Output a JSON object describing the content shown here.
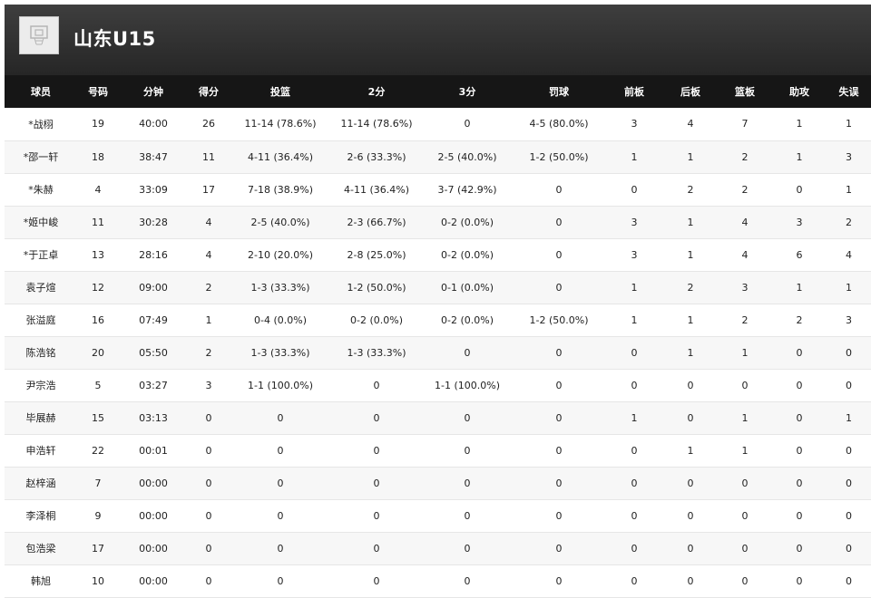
{
  "team": {
    "name": "山东U15",
    "logo_icon": "basketball-hoop-icon"
  },
  "colors": {
    "header_bg": "#2e2e2e",
    "table_header_bg": "#161616",
    "row_alt_bg": "#f7f7f7"
  },
  "columns": [
    "球员",
    "号码",
    "分钟",
    "得分",
    "投篮",
    "2分",
    "3分",
    "罚球",
    "前板",
    "后板",
    "篮板",
    "助攻",
    "失误"
  ],
  "rows": [
    [
      "*战栩",
      "19",
      "40:00",
      "26",
      "11-14 (78.6%)",
      "11-14 (78.6%)",
      "0",
      "4-5 (80.0%)",
      "3",
      "4",
      "7",
      "1",
      "1"
    ],
    [
      "*邵一轩",
      "18",
      "38:47",
      "11",
      "4-11 (36.4%)",
      "2-6 (33.3%)",
      "2-5 (40.0%)",
      "1-2 (50.0%)",
      "1",
      "1",
      "2",
      "1",
      "3"
    ],
    [
      "*朱赫",
      "4",
      "33:09",
      "17",
      "7-18 (38.9%)",
      "4-11 (36.4%)",
      "3-7 (42.9%)",
      "0",
      "0",
      "2",
      "2",
      "0",
      "1"
    ],
    [
      "*姬中峻",
      "11",
      "30:28",
      "4",
      "2-5 (40.0%)",
      "2-3 (66.7%)",
      "0-2 (0.0%)",
      "0",
      "3",
      "1",
      "4",
      "3",
      "2"
    ],
    [
      "*于正卓",
      "13",
      "28:16",
      "4",
      "2-10 (20.0%)",
      "2-8 (25.0%)",
      "0-2 (0.0%)",
      "0",
      "3",
      "1",
      "4",
      "6",
      "4"
    ],
    [
      "袁子煊",
      "12",
      "09:00",
      "2",
      "1-3 (33.3%)",
      "1-2 (50.0%)",
      "0-1 (0.0%)",
      "0",
      "1",
      "2",
      "3",
      "1",
      "1"
    ],
    [
      "张溢庭",
      "16",
      "07:49",
      "1",
      "0-4 (0.0%)",
      "0-2 (0.0%)",
      "0-2 (0.0%)",
      "1-2 (50.0%)",
      "1",
      "1",
      "2",
      "2",
      "3"
    ],
    [
      "陈浩铭",
      "20",
      "05:50",
      "2",
      "1-3 (33.3%)",
      "1-3 (33.3%)",
      "0",
      "0",
      "0",
      "1",
      "1",
      "0",
      "0"
    ],
    [
      "尹宗浩",
      "5",
      "03:27",
      "3",
      "1-1 (100.0%)",
      "0",
      "1-1 (100.0%)",
      "0",
      "0",
      "0",
      "0",
      "0",
      "0"
    ],
    [
      "毕展赫",
      "15",
      "03:13",
      "0",
      "0",
      "0",
      "0",
      "0",
      "1",
      "0",
      "1",
      "0",
      "1"
    ],
    [
      "申浩轩",
      "22",
      "00:01",
      "0",
      "0",
      "0",
      "0",
      "0",
      "0",
      "1",
      "1",
      "0",
      "0"
    ],
    [
      "赵梓涵",
      "7",
      "00:00",
      "0",
      "0",
      "0",
      "0",
      "0",
      "0",
      "0",
      "0",
      "0",
      "0"
    ],
    [
      "李泽桐",
      "9",
      "00:00",
      "0",
      "0",
      "0",
      "0",
      "0",
      "0",
      "0",
      "0",
      "0",
      "0"
    ],
    [
      "包浩梁",
      "17",
      "00:00",
      "0",
      "0",
      "0",
      "0",
      "0",
      "0",
      "0",
      "0",
      "0",
      "0"
    ],
    [
      "韩旭",
      "10",
      "00:00",
      "0",
      "0",
      "0",
      "0",
      "0",
      "0",
      "0",
      "0",
      "0",
      "0"
    ]
  ]
}
